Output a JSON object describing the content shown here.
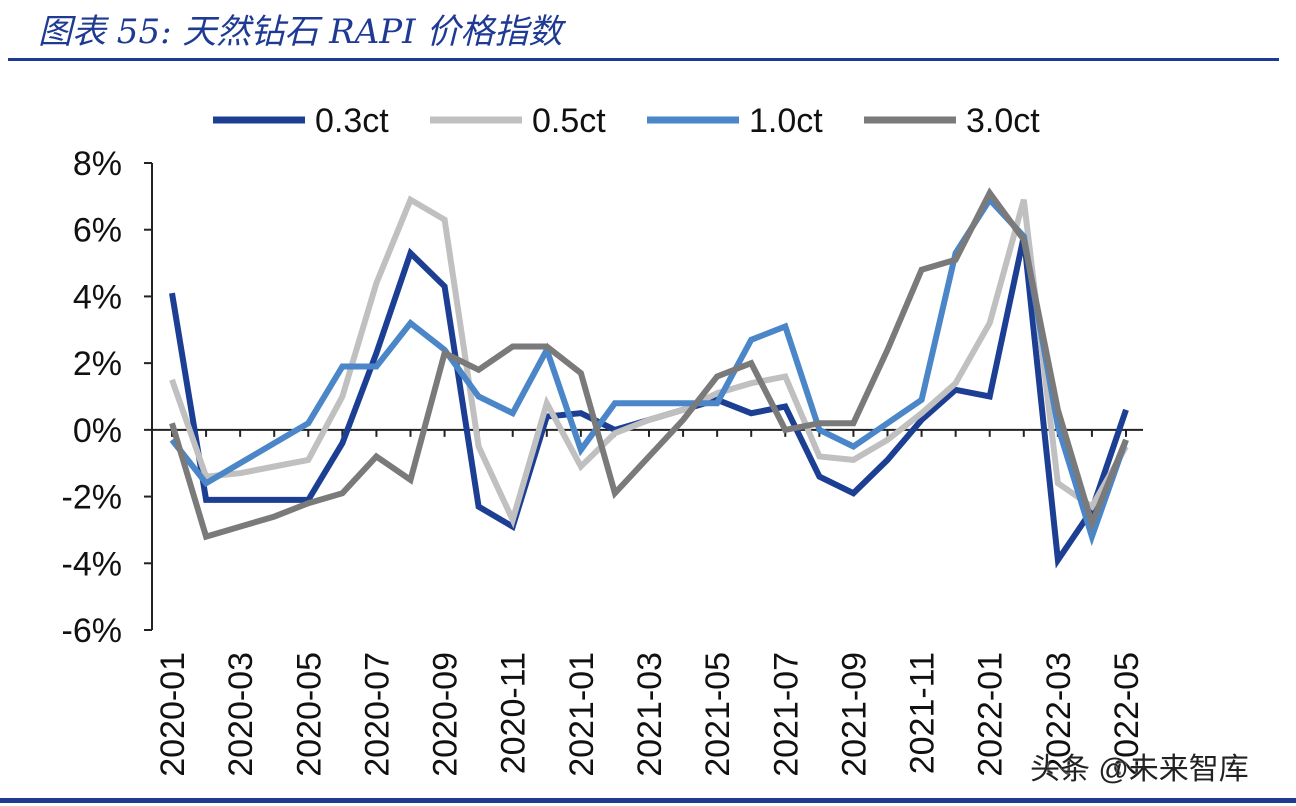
{
  "header": {
    "title": "图表 55:  天然钻石 RAPI 价格指数"
  },
  "watermark": "头条 @未来智库",
  "chart_data": {
    "type": "line",
    "title": "天然钻石 RAPI 价格指数",
    "xlabel": "",
    "ylabel": "",
    "ylim": [
      -6,
      8
    ],
    "yticks": [
      -6,
      -4,
      -2,
      0,
      2,
      4,
      6,
      8
    ],
    "ytick_labels": [
      "-6%",
      "-4%",
      "-2%",
      "0%",
      "2%",
      "4%",
      "6%",
      "8%"
    ],
    "grid": false,
    "legend": "top",
    "x": [
      "2020-01",
      "2020-02",
      "2020-03",
      "2020-04",
      "2020-05",
      "2020-06",
      "2020-07",
      "2020-08",
      "2020-09",
      "2020-10",
      "2020-11",
      "2020-12",
      "2021-01",
      "2021-02",
      "2021-03",
      "2021-04",
      "2021-05",
      "2021-06",
      "2021-07",
      "2021-08",
      "2021-09",
      "2021-10",
      "2021-11",
      "2021-12",
      "2022-01",
      "2022-02",
      "2022-03",
      "2022-04",
      "2022-05"
    ],
    "x_tick_labels": [
      "2020-01",
      "2020-03",
      "2020-05",
      "2020-07",
      "2020-09",
      "2020-11",
      "2021-01",
      "2021-03",
      "2021-05",
      "2021-07",
      "2021-09",
      "2021-11",
      "2022-01",
      "2022-03",
      "2022-05"
    ],
    "series": [
      {
        "name": "0.3ct",
        "color": "#1c3f94",
        "values": [
          4.1,
          -2.1,
          -2.1,
          -2.1,
          -2.1,
          -0.4,
          2.3,
          5.3,
          4.3,
          -2.3,
          -2.9,
          0.4,
          0.5,
          0.0,
          0.3,
          0.6,
          0.9,
          0.5,
          0.7,
          -1.4,
          -1.9,
          -0.9,
          0.3,
          1.2,
          1.0,
          5.8,
          -3.9,
          -2.4,
          0.6
        ]
      },
      {
        "name": "0.5ct",
        "color": "#c0c0c0",
        "values": [
          1.5,
          -1.4,
          -1.3,
          -1.1,
          -0.9,
          1.0,
          4.4,
          6.9,
          6.3,
          -0.5,
          -2.7,
          0.8,
          -1.1,
          -0.1,
          0.3,
          0.6,
          1.1,
          1.4,
          1.6,
          -0.8,
          -0.9,
          -0.3,
          0.5,
          1.4,
          3.2,
          6.9,
          -1.6,
          -2.3,
          -0.5
        ]
      },
      {
        "name": "1.0ct",
        "color": "#4a86c8",
        "values": [
          -0.3,
          -1.6,
          -1.0,
          -0.4,
          0.2,
          1.9,
          1.9,
          3.2,
          2.4,
          1.0,
          0.5,
          2.4,
          -0.6,
          0.8,
          0.8,
          0.8,
          0.8,
          2.7,
          3.1,
          0.0,
          -0.5,
          0.2,
          0.9,
          5.3,
          6.9,
          5.8,
          0.1,
          -3.2,
          -0.3
        ]
      },
      {
        "name": "3.0ct",
        "color": "#7a7a7a",
        "values": [
          0.2,
          -3.2,
          -2.9,
          -2.6,
          -2.2,
          -1.9,
          -0.8,
          -1.5,
          2.3,
          1.8,
          2.5,
          2.5,
          1.7,
          -1.9,
          -0.8,
          0.3,
          1.6,
          2.0,
          0.0,
          0.2,
          0.2,
          2.4,
          4.8,
          5.1,
          7.1,
          5.7,
          0.6,
          -2.8,
          -0.3
        ]
      }
    ]
  }
}
